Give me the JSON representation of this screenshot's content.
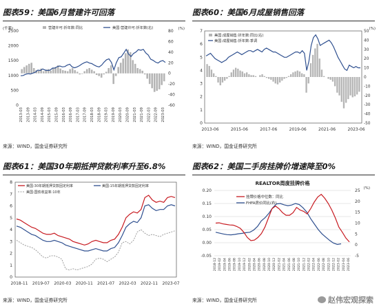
{
  "panels": [
    {
      "title": "图表59：美国6月营建许可回落",
      "source": "来源：WIND，国金证券研究所",
      "chart_data": {
        "type": "bar+line",
        "left_unit": "(千套)",
        "right_unit": "(%)",
        "legend": [
          "营建许可:折年数:同比",
          "美国:营建许可:折年数(右)"
        ],
        "ylim_left": [
          0,
          2500
        ],
        "yticks_left": [
          0,
          500,
          1000,
          1500,
          2000,
          2500
        ],
        "ylim_right": [
          -60,
          80
        ],
        "yticks_right": [
          -60,
          -40,
          -20,
          0,
          20,
          40,
          60,
          80
        ],
        "x_labels": [
          "2013-03",
          "2013-09",
          "2014-03",
          "2014-09",
          "2015-03",
          "2015-09",
          "2016-03",
          "2016-09",
          "2017-03",
          "2017-09",
          "2018-03",
          "2018-09",
          "2019-03",
          "2019-09",
          "2020-03",
          "2020-09",
          "2021-03",
          "2021-09",
          "2022-03",
          "2022-09",
          "2023-03"
        ],
        "permits_line": [
          990,
          1000,
          1040,
          1060,
          1050,
          1080,
          1110,
          1180,
          1170,
          1220,
          1180,
          1170,
          1180,
          1250,
          1250,
          1300,
          1320,
          1290,
          1300,
          1350,
          1380,
          1290,
          1260,
          1290,
          1330,
          1390,
          1430,
          1460,
          1420,
          1400,
          1350,
          1310,
          1290,
          1350,
          1450,
          1530,
          1560,
          1440,
          1190,
          1430,
          1600,
          1630,
          1750,
          1880,
          1720,
          1640,
          1740,
          1790,
          1870,
          1850,
          1880,
          1760,
          1690,
          1550,
          1510,
          1450,
          1420,
          1480,
          1500,
          1440
        ],
        "yoy_bars": [
          8,
          12,
          15,
          18,
          20,
          10,
          6,
          5,
          9,
          4,
          7,
          8,
          5,
          10,
          12,
          15,
          9,
          6,
          5,
          4,
          8,
          10,
          6,
          3,
          -2,
          -1,
          4,
          8,
          10,
          7,
          4,
          -3,
          -5,
          -8,
          -2,
          3,
          10,
          15,
          -20,
          -5,
          12,
          20,
          28,
          38,
          45,
          40,
          25,
          18,
          10,
          8,
          5,
          -2,
          -10,
          -20,
          -28,
          -35,
          -33,
          -30,
          -22,
          -15
        ]
      }
    },
    {
      "title": "图表60：美国6月成屋销售回落",
      "source": "来源：WIND，国金证券研究所",
      "chart_data": {
        "type": "bar+line",
        "left_unit": "",
        "right_unit": "(%)",
        "legend": [
          "美国:成屋销售:折年数:同比(右)",
          "美国:成屋销售:折年数:季调"
        ],
        "ylim_left": [
          0,
          7
        ],
        "yticks_left": [
          0,
          1,
          2,
          3,
          4,
          5,
          6,
          7
        ],
        "ylim_right": [
          -50,
          50
        ],
        "yticks_right": [
          -50,
          -40,
          -30,
          -20,
          -10,
          0,
          10,
          20,
          30,
          40,
          50
        ],
        "x_labels": [
          "2013-06",
          "2015-06",
          "2017-06",
          "2019-06",
          "2021-06",
          "2023-06"
        ],
        "sales_line": [
          5.1,
          5.2,
          5.3,
          5.1,
          4.9,
          4.8,
          4.7,
          4.6,
          4.7,
          4.8,
          5.0,
          5.1,
          5.2,
          5.3,
          5.4,
          5.3,
          5.2,
          5.3,
          5.4,
          5.5,
          5.5,
          5.4,
          5.5,
          5.6,
          5.5,
          5.4,
          5.6,
          5.7,
          5.6,
          5.5,
          5.4,
          5.4,
          5.3,
          5.2,
          5.1,
          5.0,
          5.0,
          5.1,
          5.2,
          5.3,
          5.4,
          5.4,
          5.3,
          5.5,
          5.3,
          4.0,
          4.7,
          5.9,
          6.5,
          6.7,
          6.4,
          5.9,
          6.0,
          6.1,
          6.2,
          6.3,
          6.1,
          5.8,
          5.4,
          5.0,
          4.7,
          4.4,
          4.1,
          4.0,
          4.4,
          4.3,
          4.2,
          4.3,
          4.2,
          4.2
        ],
        "yoy_bars": [
          14,
          12,
          8,
          4,
          1,
          -6,
          -9,
          -6,
          -4,
          -2,
          1,
          5,
          8,
          10,
          9,
          7,
          6,
          4,
          5,
          3,
          2,
          2,
          1,
          0,
          2,
          3,
          1,
          -1,
          -2,
          -3,
          -5,
          -7,
          -8,
          -6,
          -4,
          -2,
          -1,
          1,
          3,
          5,
          6,
          7,
          6,
          4,
          3,
          -17,
          -7,
          15,
          24,
          31,
          36,
          20,
          8,
          1,
          0,
          -2,
          -3,
          -5,
          -10,
          -17,
          -20,
          -27,
          -34,
          -28,
          -24,
          -20,
          -22,
          -21,
          -19,
          -16
        ]
      }
    },
    {
      "title": "图表61：美国30年期抵押贷款利率升至6.8%",
      "source": "来源：WIND，国金证券研究所",
      "chart_data": {
        "type": "line",
        "ylim": [
          0,
          8
        ],
        "yticks": [
          0,
          1,
          2,
          3,
          4,
          5,
          6,
          7,
          8
        ],
        "legend": [
          "美国:30年期抵押贷款固定利率",
          "美国:15年期抵押贷款固定利率",
          "美国:国债收益率:10年"
        ],
        "x_labels": [
          "2018-11",
          "2019-07",
          "2020-03",
          "2020-11",
          "2021-07",
          "2022-03",
          "2022-11",
          "2023-07"
        ],
        "rate30": [
          4.9,
          4.8,
          4.6,
          4.4,
          4.2,
          4.1,
          3.9,
          3.7,
          3.6,
          3.6,
          3.7,
          3.5,
          3.4,
          3.3,
          3.2,
          3.0,
          2.9,
          2.8,
          2.7,
          2.8,
          3.0,
          3.1,
          3.0,
          2.9,
          2.9,
          3.1,
          3.2,
          3.6,
          4.2,
          5.0,
          5.3,
          5.5,
          5.4,
          5.7,
          6.7,
          6.9,
          6.5,
          6.3,
          6.4,
          6.3,
          6.7,
          6.8,
          6.7
        ],
        "rate15": [
          4.3,
          4.2,
          4.0,
          3.8,
          3.6,
          3.5,
          3.3,
          3.1,
          3.0,
          3.0,
          3.1,
          3.0,
          2.9,
          2.7,
          2.6,
          2.5,
          2.4,
          2.3,
          2.2,
          2.2,
          2.3,
          2.4,
          2.3,
          2.2,
          2.2,
          2.4,
          2.5,
          2.9,
          3.5,
          4.2,
          4.5,
          4.7,
          4.6,
          5.0,
          6.0,
          6.1,
          5.8,
          5.6,
          5.7,
          5.7,
          6.0,
          6.1,
          6.0
        ],
        "ust10": [
          3.1,
          2.9,
          2.7,
          2.6,
          2.5,
          2.3,
          2.0,
          1.7,
          1.6,
          1.8,
          1.8,
          1.7,
          1.5,
          0.7,
          0.6,
          0.7,
          0.6,
          0.7,
          0.8,
          0.9,
          1.1,
          1.5,
          1.6,
          1.5,
          1.3,
          1.5,
          1.7,
          2.1,
          2.9,
          3.0,
          2.8,
          3.1,
          3.8,
          4.0,
          3.7,
          3.5,
          3.6,
          3.5,
          3.4,
          3.6,
          3.7,
          3.8,
          3.9
        ]
      }
    },
    {
      "title": "图表62：美国二手房挂牌价增速降至0%",
      "source": "来源：WIND，国金证券研究所",
      "chart_data": {
        "type": "line",
        "chart_title": "REALTOR周度挂牌价格",
        "legend": [
          "挂牌价格中位数：同比",
          "FHFA房价同比(右)"
        ],
        "ylim_left": [
          -0.05,
          0.2
        ],
        "yticks_left": [
          "-0.05",
          "0.00",
          "0.05",
          "0.10",
          "0.15",
          "0.20"
        ],
        "ylim_right": [
          -5,
          25
        ],
        "yticks_right": [
          -5,
          0,
          5,
          10,
          15,
          20,
          25
        ],
        "x_labels": [
          "2018-12",
          "2019-02",
          "2019-04",
          "2019-06",
          "2019-08",
          "2019-10",
          "2019-12",
          "2020-02",
          "2020-04",
          "2020-06",
          "2020-08",
          "2020-10",
          "2020-12",
          "2021-02",
          "2021-04",
          "2021-06",
          "2021-08",
          "2021-10",
          "2021-12",
          "2022-02",
          "2022-04",
          "2022-06",
          "2022-08",
          "2022-10",
          "2022-12",
          "2023-02",
          "2023-04",
          "2023-06"
        ],
        "listing_yoy": [
          0.075,
          0.076,
          0.072,
          0.07,
          0.068,
          0.067,
          0.062,
          0.055,
          0.04,
          0.02,
          0.008,
          0.01,
          0.02,
          0.035,
          0.06,
          0.095,
          0.13,
          0.14,
          0.13,
          0.115,
          0.105,
          0.105,
          0.115,
          0.135,
          0.125,
          0.12,
          0.11,
          0.13,
          0.155,
          0.175,
          0.185,
          0.17,
          0.15,
          0.125,
          0.095,
          0.06,
          0.04,
          0.018,
          0.003
        ],
        "fhfa_yoy": [
          5.8,
          5.4,
          5.0,
          4.7,
          4.6,
          4.8,
          5.1,
          5.3,
          5.6,
          5.8,
          6.8,
          8.5,
          11.0,
          12.5,
          14.5,
          17.0,
          18.8,
          19.0,
          18.4,
          18.0,
          18.3,
          19.0,
          18.5,
          17.0,
          15.0,
          12.0,
          9.5,
          7.0,
          5.0,
          3.5,
          2.0,
          0.8,
          0.2,
          0.5
        ],
        "left_unit": "",
        "right_unit": "(%)"
      }
    }
  ],
  "watermark": "赵伟宏观探索"
}
